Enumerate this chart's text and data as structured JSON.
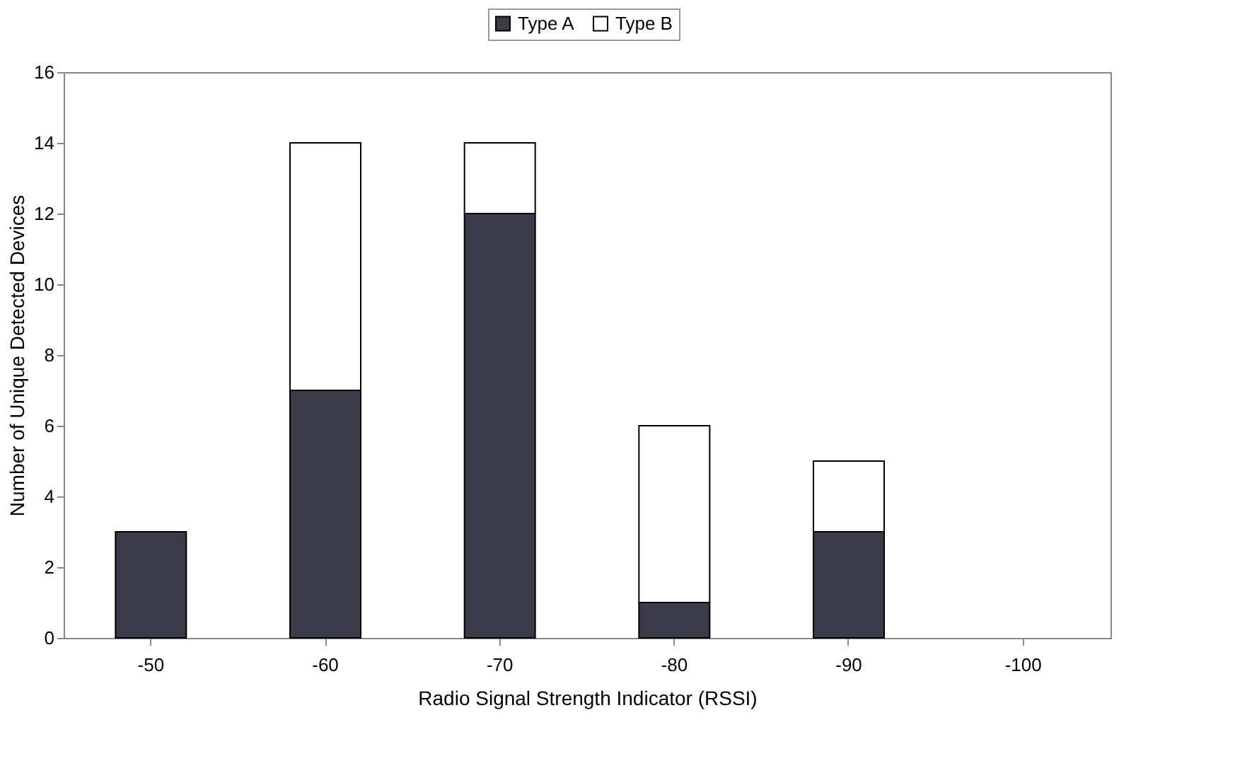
{
  "chart_data": {
    "type": "bar",
    "stacked": true,
    "xlabel": "Radio Signal Strength Indicator (RSSI)",
    "ylabel": "Number of Unique Detected Devices",
    "categories": [
      "-50",
      "-60",
      "-70",
      "-80",
      "-90",
      "-100"
    ],
    "series": [
      {
        "name": "Type A",
        "color": "#3a3a48",
        "values": [
          3,
          7,
          12,
          1,
          3,
          0
        ]
      },
      {
        "name": "Type B",
        "color": "#ffffff",
        "values": [
          0,
          7,
          2,
          5,
          2,
          0
        ]
      }
    ],
    "ylim": [
      0,
      16
    ],
    "yticks": [
      0,
      2,
      4,
      6,
      8,
      10,
      12,
      14,
      16
    ],
    "grid": false,
    "legend": "top"
  }
}
